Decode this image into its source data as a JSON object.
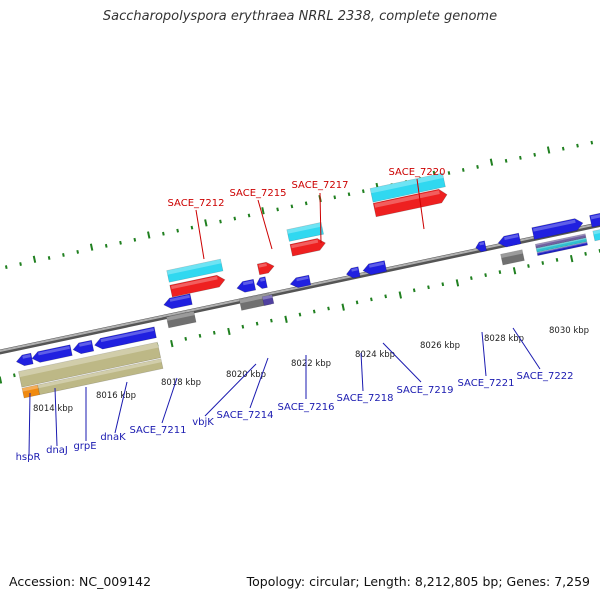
{
  "title": "Saccharopolyspora erythraea NRRL 2338, complete genome",
  "accession": "Accession: NC_009142",
  "topology": "Topology: circular; Length: 8,212,805 bp; Genes: 7,259",
  "colors": {
    "forward_gene": "#2020e0",
    "highlight_gene": "#ee2020",
    "cds_cyan": "#30d8f0",
    "rna_gray": "#707070",
    "khaki": "#bdb886",
    "orange": "#f08a10",
    "tick": "#208020",
    "backbone": "#808080",
    "label_red": "#cc0000",
    "label_blue": "#1a1ab0"
  },
  "scale_labels": [
    "8014 kbp",
    "8016 kbp",
    "8018 kbp",
    "8020 kbp",
    "8022 kbp",
    "8024 kbp",
    "8026 kbp",
    "8028 kbp",
    "8030 kbp"
  ],
  "top_labels": [
    "SACE_7212",
    "SACE_7215",
    "SACE_7217",
    "SACE_7220"
  ],
  "bottom_labels": [
    "hspR",
    "dnaJ",
    "grpE",
    "dnaK",
    "SACE_7211",
    "vbjK",
    "SACE_7214",
    "SACE_7216",
    "SACE_7218",
    "SACE_7219",
    "SACE_7221",
    "SACE_7222"
  ]
}
